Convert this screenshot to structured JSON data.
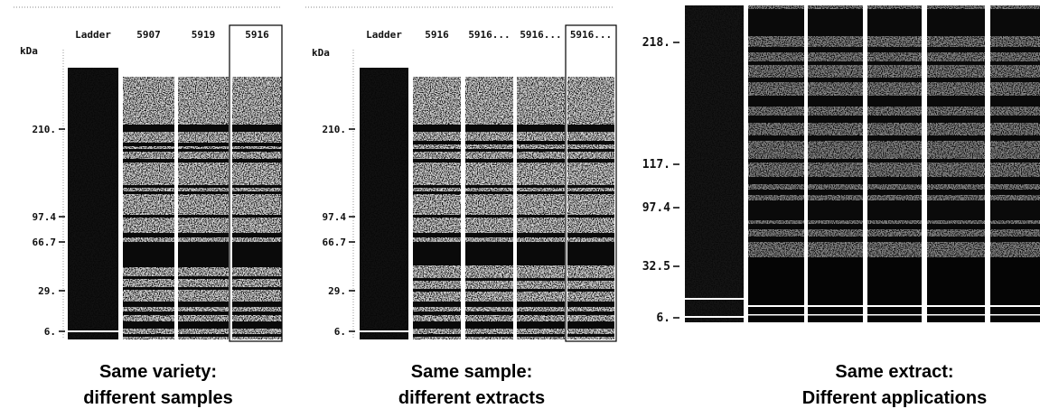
{
  "panels": [
    {
      "unit": "kDa",
      "lanes": [
        "Ladder",
        "5907",
        "5919",
        "5916"
      ],
      "markers": [
        "210.",
        "97.4",
        "66.7",
        "29.",
        "6."
      ],
      "caption": [
        "Same variety:",
        "different samples"
      ]
    },
    {
      "unit": "kDa",
      "lanes": [
        "Ladder",
        "5916",
        "5916...",
        "5916...",
        "5916..."
      ],
      "markers": [
        "210.",
        "97.4",
        "66.7",
        "29.",
        "6."
      ],
      "caption": [
        "Same sample:",
        "different extracts"
      ]
    },
    {
      "markers": [
        "218.",
        "117.",
        "97.4",
        "32.5",
        "6."
      ],
      "caption": [
        "Same extract:",
        "Different applications"
      ]
    }
  ]
}
